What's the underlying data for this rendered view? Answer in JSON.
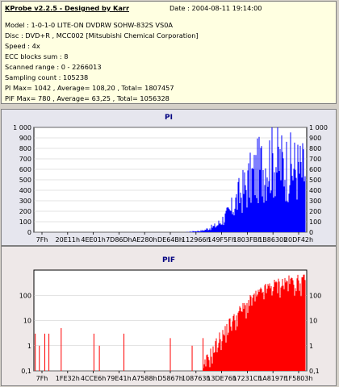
{
  "header": {
    "title": "KProbe v2.2.5 - Designed by Karr",
    "date": "Date : 2004-08-11 19:14:00"
  },
  "info_lines": [
    "Model : 1-0-1-0 LITE-ON DVDRW SOHW-832S  VS0A",
    "Disc : DVD+R , MCC002 [Mitsubishi Chemical Corporation]",
    "Speed : 4x",
    "ECC blocks sum : 8",
    "Scanned range : 0 - 2266013",
    "Sampling count : 105238",
    "PI Max= 1042 , Average= 108,20 , Total= 1807457",
    "PIF Max= 780 , Average= 63,25 , Total= 1056328"
  ],
  "chart_data": [
    {
      "type": "area",
      "title": "PI",
      "color": "#0000ff",
      "ylim": [
        0,
        1000
      ],
      "y_ticks": [
        "0",
        "100",
        "200",
        "300",
        "400",
        "500",
        "600",
        "700",
        "800",
        "900",
        "1 000"
      ],
      "x_ticks": [
        "7Fh",
        "20E11h",
        "4EE01h",
        "7D86Dh",
        "AE280h",
        "DE64Bh",
        "112966h",
        "149F5Fh",
        "1803FBh",
        "1B8630h",
        "20DF42h"
      ],
      "profile_x": [
        0.0,
        0.55,
        0.62,
        0.67,
        0.72,
        0.75,
        0.78,
        0.8,
        0.83,
        0.87,
        0.9,
        0.93,
        0.96,
        1.0
      ],
      "profile_y": [
        0,
        0,
        20,
        80,
        240,
        420,
        560,
        650,
        760,
        880,
        820,
        780,
        760,
        700
      ]
    },
    {
      "type": "area",
      "title": "PIF",
      "color": "#ff0000",
      "yscale": "log",
      "ylim": [
        0.1,
        1000
      ],
      "y_ticks": [
        "0,1",
        "1",
        "10",
        "100"
      ],
      "x_ticks": [
        "7Fh",
        "1FE32h",
        "4CCE6h",
        "79E41h",
        "A7588h",
        "D5867h",
        "108763h",
        "13DE76h",
        "17231Ch",
        "1A8197h",
        "1F5803h"
      ],
      "profile_x": [
        0.0,
        0.62,
        0.66,
        0.7,
        0.74,
        0.78,
        0.82,
        0.86,
        0.9,
        0.94,
        1.0
      ],
      "profile_y": [
        0.1,
        0.1,
        1,
        5,
        20,
        60,
        150,
        300,
        450,
        550,
        600
      ],
      "spikes_x": [
        0.005,
        0.02,
        0.04,
        0.055,
        0.1,
        0.22,
        0.24,
        0.33,
        0.5,
        0.58,
        0.62
      ]
    }
  ]
}
